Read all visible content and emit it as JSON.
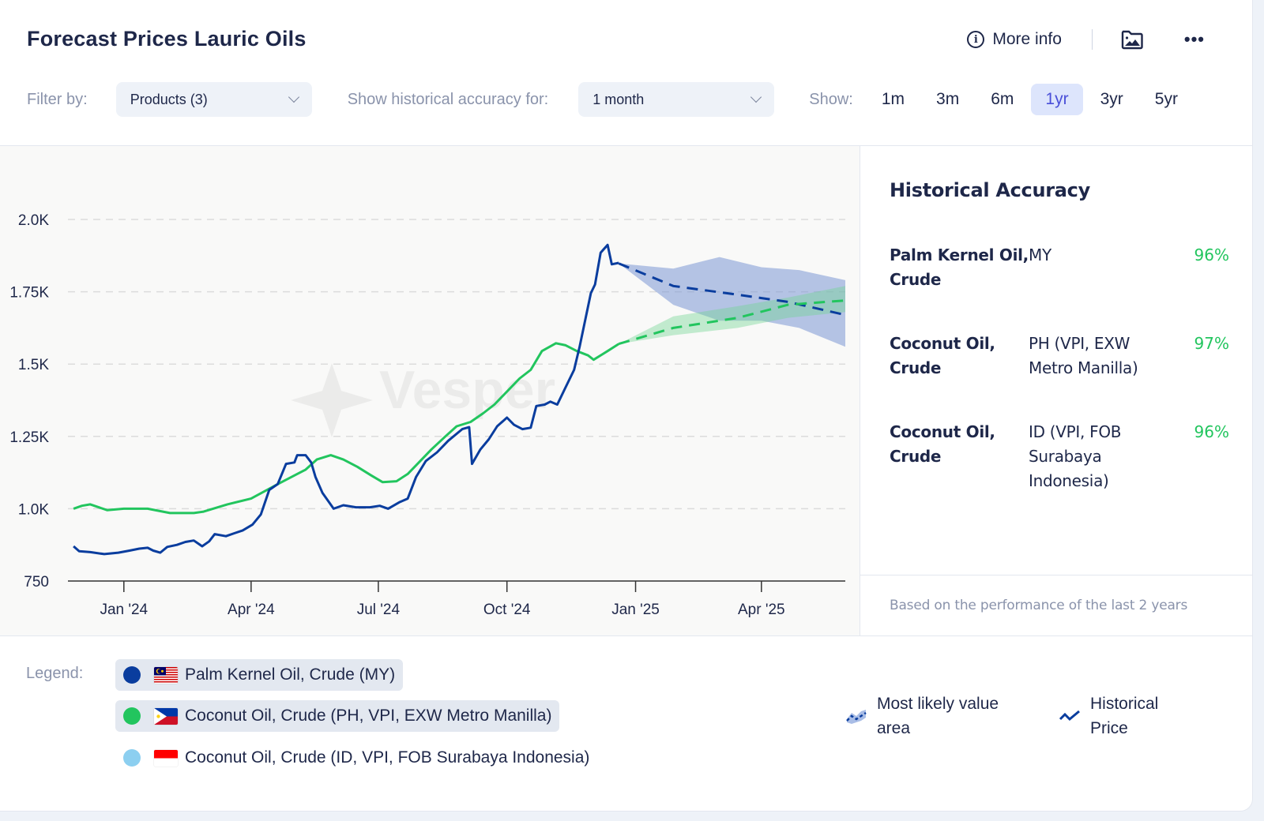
{
  "header": {
    "title": "Forecast Prices Lauric Oils",
    "more_info_label": "More info",
    "more_info_icon": "info-icon",
    "image_icon": "image-folder-icon",
    "menu_icon": "more-horizontal-icon",
    "menu_glyph": "•••"
  },
  "filters": {
    "filter_label": "Filter by:",
    "filter_value": "Products (3)",
    "accuracy_label": "Show historical accuracy for:",
    "accuracy_value": "1 month",
    "show_label": "Show:",
    "periods": [
      {
        "label": "1m",
        "active": false
      },
      {
        "label": "3m",
        "active": false
      },
      {
        "label": "6m",
        "active": false
      },
      {
        "label": "1yr",
        "active": true
      },
      {
        "label": "3yr",
        "active": false
      },
      {
        "label": "5yr",
        "active": false
      }
    ]
  },
  "watermark": "Vesper",
  "historical_accuracy": {
    "title": "Historical Accuracy",
    "rows": [
      {
        "product": "Palm Kernel Oil, Crude",
        "region": "MY",
        "accuracy": "96%"
      },
      {
        "product": "Coconut Oil, Crude",
        "region": "PH (VPI, EXW Metro Manilla)",
        "accuracy": "97%"
      },
      {
        "product": "Coconut Oil, Crude",
        "region": "ID (VPI, FOB Surabaya Indonesia)",
        "accuracy": "96%"
      }
    ],
    "footnote": "Based on the performance of the last 2 years"
  },
  "legend": {
    "label": "Legend:",
    "items": [
      {
        "label": "Palm Kernel Oil, Crude (MY)",
        "color": "#0a3d9e",
        "flag": "MY",
        "active": true
      },
      {
        "label": "Coconut Oil, Crude (PH, VPI, EXW Metro Manilla)",
        "color": "#22c55e",
        "flag": "PH",
        "active": true
      },
      {
        "label": "Coconut Oil, Crude (ID, VPI, FOB Surabaya Indonesia)",
        "color": "#8ccff0",
        "flag": "ID",
        "active": false
      }
    ],
    "keys": [
      {
        "label": "Most likely value area",
        "icon": "forecast-area-icon"
      },
      {
        "label": "Historical Price",
        "icon": "historical-line-icon"
      }
    ]
  },
  "chart_data": {
    "type": "line",
    "title": "Forecast Prices Lauric Oils",
    "xlabel": "",
    "ylabel": "",
    "y_ticks": [
      750,
      1000,
      1250,
      1500,
      1750,
      2000
    ],
    "y_tick_labels": [
      "750",
      "1.0K",
      "1.25K",
      "1.5K",
      "1.75K",
      "2.0K"
    ],
    "ylim": [
      750,
      2000
    ],
    "x_range": [
      "2023-11-22",
      "2025-05-31"
    ],
    "x_ticks": [
      "2024-01-01",
      "2024-04-01",
      "2024-07-01",
      "2024-10-01",
      "2025-01-01",
      "2025-04-01"
    ],
    "x_tick_labels": [
      "Jan '24",
      "Apr '24",
      "Jul '24",
      "Oct '24",
      "Jan '25",
      "Apr '25"
    ],
    "grid": "horizontal-dashed",
    "series": [
      {
        "name": "Palm Kernel Oil, Crude (MY)",
        "color": "#0a3d9e",
        "historical": [
          [
            "2023-11-26",
            870
          ],
          [
            "2023-11-30",
            853
          ],
          [
            "2023-12-08",
            850
          ],
          [
            "2023-12-18",
            843
          ],
          [
            "2023-12-28",
            848
          ],
          [
            "2024-01-05",
            855
          ],
          [
            "2024-01-12",
            862
          ],
          [
            "2024-01-18",
            865
          ],
          [
            "2024-01-22",
            855
          ],
          [
            "2024-01-27",
            848
          ],
          [
            "2024-02-01",
            868
          ],
          [
            "2024-02-08",
            875
          ],
          [
            "2024-02-14",
            885
          ],
          [
            "2024-02-20",
            890
          ],
          [
            "2024-02-26",
            870
          ],
          [
            "2024-03-02",
            887
          ],
          [
            "2024-03-06",
            912
          ],
          [
            "2024-03-14",
            905
          ],
          [
            "2024-03-20",
            915
          ],
          [
            "2024-03-26",
            925
          ],
          [
            "2024-04-02",
            945
          ],
          [
            "2024-04-08",
            980
          ],
          [
            "2024-04-14",
            1065
          ],
          [
            "2024-04-20",
            1085
          ],
          [
            "2024-04-26",
            1155
          ],
          [
            "2024-05-02",
            1160
          ],
          [
            "2024-05-04",
            1185
          ],
          [
            "2024-05-10",
            1185
          ],
          [
            "2024-05-14",
            1160
          ],
          [
            "2024-05-17",
            1110
          ],
          [
            "2024-05-22",
            1055
          ],
          [
            "2024-05-30",
            1000
          ],
          [
            "2024-06-06",
            1012
          ],
          [
            "2024-06-15",
            1005
          ],
          [
            "2024-06-25",
            1005
          ],
          [
            "2024-07-02",
            1010
          ],
          [
            "2024-07-08",
            1000
          ],
          [
            "2024-07-16",
            1022
          ],
          [
            "2024-07-22",
            1035
          ],
          [
            "2024-07-28",
            1110
          ],
          [
            "2024-08-04",
            1165
          ],
          [
            "2024-08-12",
            1195
          ],
          [
            "2024-08-20",
            1235
          ],
          [
            "2024-08-30",
            1275
          ],
          [
            "2024-09-04",
            1282
          ],
          [
            "2024-09-06",
            1155
          ],
          [
            "2024-09-12",
            1205
          ],
          [
            "2024-09-18",
            1240
          ],
          [
            "2024-09-24",
            1285
          ],
          [
            "2024-10-01",
            1315
          ],
          [
            "2024-10-06",
            1290
          ],
          [
            "2024-10-12",
            1275
          ],
          [
            "2024-10-18",
            1280
          ],
          [
            "2024-10-22",
            1355
          ],
          [
            "2024-10-28",
            1360
          ],
          [
            "2024-11-01",
            1370
          ],
          [
            "2024-11-06",
            1360
          ],
          [
            "2024-11-12",
            1420
          ],
          [
            "2024-11-18",
            1480
          ],
          [
            "2024-11-22",
            1560
          ],
          [
            "2024-11-30",
            1745
          ],
          [
            "2024-12-03",
            1775
          ],
          [
            "2024-12-07",
            1885
          ],
          [
            "2024-12-12",
            1912
          ],
          [
            "2024-12-15",
            1845
          ],
          [
            "2024-12-20",
            1850
          ]
        ],
        "forecast": [
          [
            "2024-12-20",
            1848
          ],
          [
            "2025-01-28",
            1770
          ],
          [
            "2025-03-15",
            1740
          ],
          [
            "2025-04-20",
            1715
          ],
          [
            "2025-05-31",
            1670
          ]
        ],
        "band_upper": [
          [
            "2024-12-20",
            1848
          ],
          [
            "2025-01-28",
            1830
          ],
          [
            "2025-03-02",
            1870
          ],
          [
            "2025-04-01",
            1835
          ],
          [
            "2025-04-28",
            1825
          ],
          [
            "2025-05-31",
            1790
          ]
        ],
        "band_lower": [
          [
            "2024-12-20",
            1848
          ],
          [
            "2025-01-28",
            1705
          ],
          [
            "2025-03-02",
            1650
          ],
          [
            "2025-04-01",
            1650
          ],
          [
            "2025-04-28",
            1625
          ],
          [
            "2025-05-31",
            1560
          ]
        ]
      },
      {
        "name": "Coconut Oil, Crude (PH, VPI, EXW Metro Manilla)",
        "color": "#22c55e",
        "historical": [
          [
            "2023-11-26",
            1000
          ],
          [
            "2023-12-02",
            1010
          ],
          [
            "2023-12-08",
            1015
          ],
          [
            "2023-12-14",
            1005
          ],
          [
            "2023-12-20",
            995
          ],
          [
            "2024-01-01",
            1000
          ],
          [
            "2024-01-18",
            1000
          ],
          [
            "2024-02-03",
            985
          ],
          [
            "2024-02-20",
            985
          ],
          [
            "2024-02-27",
            990
          ],
          [
            "2024-03-15",
            1015
          ],
          [
            "2024-04-01",
            1035
          ],
          [
            "2024-04-20",
            1085
          ],
          [
            "2024-05-04",
            1120
          ],
          [
            "2024-05-10",
            1135
          ],
          [
            "2024-05-18",
            1170
          ],
          [
            "2024-05-28",
            1185
          ],
          [
            "2024-06-06",
            1170
          ],
          [
            "2024-06-16",
            1145
          ],
          [
            "2024-06-26",
            1115
          ],
          [
            "2024-07-04",
            1092
          ],
          [
            "2024-07-14",
            1095
          ],
          [
            "2024-07-22",
            1120
          ],
          [
            "2024-07-30",
            1160
          ],
          [
            "2024-08-08",
            1205
          ],
          [
            "2024-08-18",
            1250
          ],
          [
            "2024-08-26",
            1285
          ],
          [
            "2024-09-05",
            1300
          ],
          [
            "2024-09-14",
            1330
          ],
          [
            "2024-09-22",
            1360
          ],
          [
            "2024-10-02",
            1410
          ],
          [
            "2024-10-10",
            1450
          ],
          [
            "2024-10-18",
            1480
          ],
          [
            "2024-10-26",
            1545
          ],
          [
            "2024-11-05",
            1572
          ],
          [
            "2024-11-12",
            1565
          ],
          [
            "2024-11-20",
            1545
          ],
          [
            "2024-11-28",
            1530
          ],
          [
            "2024-12-02",
            1515
          ],
          [
            "2024-12-12",
            1545
          ],
          [
            "2024-12-20",
            1570
          ]
        ],
        "forecast": [
          [
            "2024-12-20",
            1570
          ],
          [
            "2025-01-28",
            1625
          ],
          [
            "2025-03-15",
            1660
          ],
          [
            "2025-04-20",
            1705
          ],
          [
            "2025-05-31",
            1720
          ]
        ],
        "band_upper": [
          [
            "2024-12-20",
            1570
          ],
          [
            "2025-01-28",
            1665
          ],
          [
            "2025-03-15",
            1700
          ],
          [
            "2025-04-20",
            1730
          ],
          [
            "2025-05-31",
            1770
          ]
        ],
        "band_lower": [
          [
            "2024-12-20",
            1570
          ],
          [
            "2025-01-28",
            1600
          ],
          [
            "2025-03-15",
            1625
          ],
          [
            "2025-04-20",
            1660
          ],
          [
            "2025-05-31",
            1680
          ]
        ]
      }
    ]
  }
}
